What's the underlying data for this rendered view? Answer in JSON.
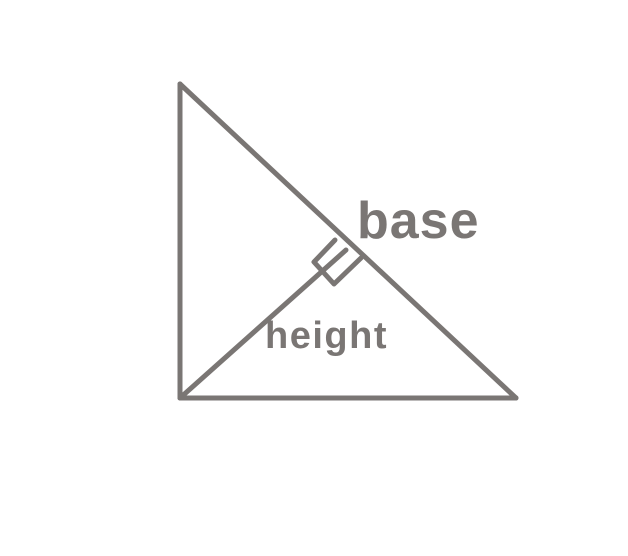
{
  "diagram": {
    "labels": {
      "base": "base",
      "height": "height"
    },
    "colors": {
      "stroke": "#7a7674",
      "text": "#7a7674",
      "background": "#ffffff"
    }
  }
}
